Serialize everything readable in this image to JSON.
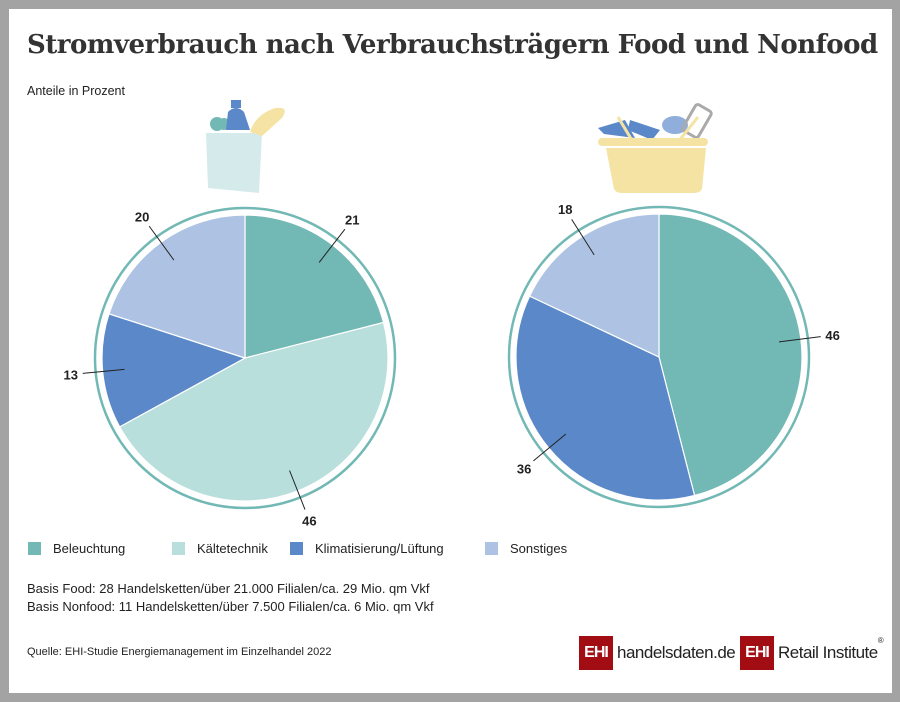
{
  "title": "Stromverbrauch nach Verbrauchsträgern Food und Nonfood",
  "subtitle": "Anteile in Prozent",
  "colors": {
    "Beleuchtung": "#72b8b4",
    "Kältetechnik": "#b9dfdd",
    "Klimatisierung/Lüftung": "#5a88c8",
    "Sonstiges": "#aec3e3",
    "ring": "#72b8b4"
  },
  "chart_data": [
    {
      "type": "pie",
      "name": "Food",
      "icon": "grocery-bag-icon",
      "categories": [
        "Beleuchtung",
        "Kältetechnik",
        "Klimatisierung/Lüftung",
        "Sonstiges"
      ],
      "values": [
        21,
        46,
        13,
        20
      ]
    },
    {
      "type": "pie",
      "name": "Nonfood",
      "icon": "shopping-basket-icon",
      "categories": [
        "Beleuchtung",
        "Klimatisierung/Lüftung",
        "Sonstiges"
      ],
      "values": [
        46,
        36,
        18
      ]
    }
  ],
  "legend": [
    "Beleuchtung",
    "Kältetechnik",
    "Klimatisierung/Lüftung",
    "Sonstiges"
  ],
  "basis": [
    "Basis Food: 28 Handelsketten/über 21.000 Filialen/ca. 29 Mio. qm Vkf",
    "Basis Nonfood: 11 Handelsketten/über 7.500 Filialen/ca. 6 Mio. qm Vkf"
  ],
  "source": "Quelle: EHI-Studie Energiemanagement im Einzelhandel 2022",
  "logos": {
    "ehi": "EHI",
    "handelsdaten": "handelsdaten.de",
    "retail": "Retail Institute",
    "reg": "®"
  }
}
